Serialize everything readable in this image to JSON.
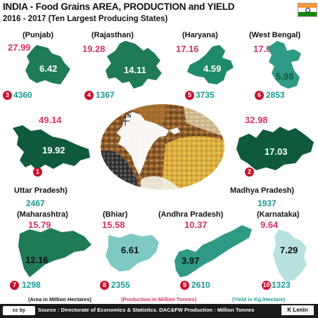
{
  "header": {
    "title": "INDIA - Food Grains  AREA, PRODUCTION and  YIELD",
    "subtitle": "2016 - 2017 (Ten Largest Producing States)"
  },
  "colors": {
    "area": "#d6336c",
    "yield": "#1a9a96",
    "rank": "#c8102e",
    "map_dark": "#0f5a3c",
    "map_mid": "#1f7a56",
    "map_light": "#2f9a86",
    "map_pale": "#7fc9c4",
    "map_paler": "#b8e2de"
  },
  "states": [
    {
      "name": "(Punjab)",
      "area": "27.99",
      "production": "6.42",
      "rank": "3",
      "yield": "4360"
    },
    {
      "name": "(Rajasthan)",
      "area": "19.28",
      "production": "14.11",
      "rank": "4",
      "yield": "1367"
    },
    {
      "name": "(Haryana)",
      "area": "17.16",
      "production": "4.59",
      "rank": "5",
      "yield": "3735"
    },
    {
      "name": "(West Bengal)",
      "area": "17.06",
      "production": "5.98",
      "rank": "6",
      "yield": "2853"
    },
    {
      "name": "Uttar  Pradesh)",
      "area": "49.14",
      "production": "19.92",
      "rank": "1",
      "yield": "2467"
    },
    {
      "name": "Madhya Pradesh)",
      "area": "32.98",
      "production": "17.03",
      "rank": "2",
      "yield": "1937"
    },
    {
      "name": "(Maharashtra)",
      "area": "15.79",
      "production": "12.16",
      "rank": "7",
      "yield": "1298"
    },
    {
      "name": "(Bhiar)",
      "area": "15.58",
      "production": "6.61",
      "rank": "8",
      "yield": "2355"
    },
    {
      "name": "(Andhra Pradesh)",
      "area": "10.37",
      "production": "3.97",
      "rank": "9",
      "yield": "2610"
    },
    {
      "name": "(Karnataka)",
      "area": "9.64",
      "production": "7.29",
      "rank": "10",
      "yield": "1323"
    }
  ],
  "legend": {
    "area": "(Area in Million Hectares)",
    "production": "(Production in Million Tonnes)",
    "yield": "(Yield in Kg./Hectare)"
  },
  "center_image": {
    "compass_label": "N"
  },
  "footer": {
    "license": "cc by",
    "source": "Source : Directorate of Economics & Statistics. DAC&FW  Production : Million Tonnes",
    "author": "K Lenin"
  }
}
